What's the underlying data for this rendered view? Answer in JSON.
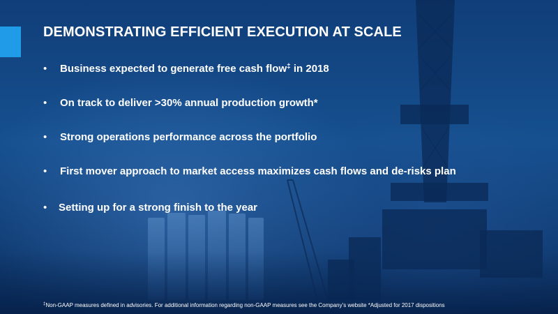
{
  "slide": {
    "title": "DEMONSTRATING EFFICIENT EXECUTION AT SCALE",
    "accent_color": "#1f9be8",
    "background_color": "#124887",
    "bullet_glyph": "•",
    "bullets": [
      {
        "text_before": "Business expected to generate free cash flow",
        "marker": "‡",
        "text_after": " in 2018"
      },
      {
        "text": "On track to deliver >30% annual production growth*"
      },
      {
        "text": "Strong operations performance across the portfolio"
      },
      {
        "text": "First mover approach to market access maximizes cash flows and de-risks plan"
      },
      {
        "text": "Setting up for a strong finish to the year"
      }
    ],
    "footnote": {
      "marker": "‡",
      "text": "Non-GAAP measures defined in advisories. For additional information regarding non-GAAP measures see the Company’s website *Adjusted for 2017 dispositions"
    },
    "background_image": "drilling-rig-and-storage-tanks-photo"
  }
}
